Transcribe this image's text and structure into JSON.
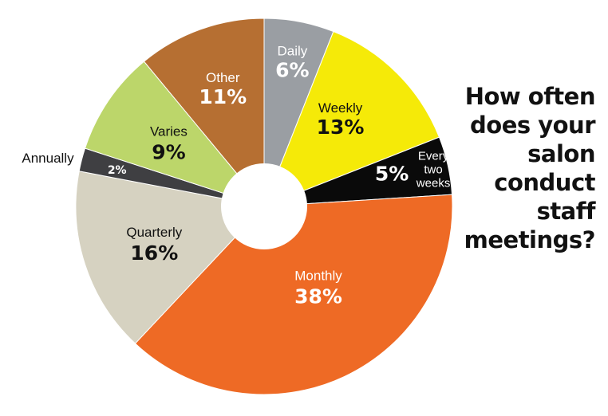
{
  "chart_data": {
    "type": "pie",
    "title_lines": [
      "How often",
      "does your",
      "salon",
      "conduct",
      "staff",
      "meetings?"
    ],
    "slices": [
      {
        "label": "Daily",
        "value_label": "6%",
        "value": 6,
        "color": "#9a9ea3",
        "text_color": "#ffffff"
      },
      {
        "label": "Weekly",
        "value_label": "13%",
        "value": 13,
        "color": "#f5ea08",
        "text_color": "#111111"
      },
      {
        "label": "Every two weeks",
        "label_lines": [
          "Every",
          "two",
          "weeks"
        ],
        "value_label": "5%",
        "value": 5,
        "color": "#0a0a0a",
        "text_color": "#ffffff"
      },
      {
        "label": "Monthly",
        "value_label": "38%",
        "value": 38,
        "color": "#ee6a25",
        "text_color": "#ffffff"
      },
      {
        "label": "Quarterly",
        "value_label": "16%",
        "value": 16,
        "color": "#d6d2c1",
        "text_color": "#111111"
      },
      {
        "label": "Annually",
        "value_label": "2%",
        "value": 2,
        "color": "#3f3f42",
        "text_color": "#ffffff"
      },
      {
        "label": "Varies",
        "value_label": "9%",
        "value": 9,
        "color": "#bcd66a",
        "text_color": "#111111"
      },
      {
        "label": "Other",
        "value_label": "11%",
        "value": 11,
        "color": "#b66f32",
        "text_color": "#ffffff"
      }
    ],
    "has_center_hole": true,
    "legend": "none"
  }
}
